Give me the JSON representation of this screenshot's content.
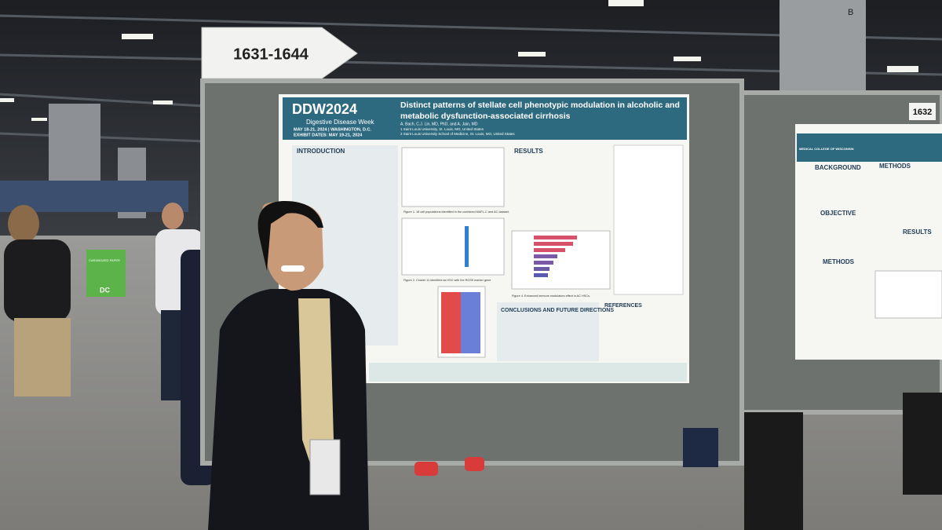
{
  "signs": {
    "aisle": "1631-1644",
    "booth": "1632",
    "pillar": "B",
    "dc": "DC",
    "cardboard": "CARDBOARD PAPER"
  },
  "poster_left": {
    "logo": "DDW2024",
    "logo_sub": "Digestive Disease Week",
    "dates": "MAY 18-21, 2024 | WASHINGTON, D.C.",
    "exhibit": "EXHIBIT DATES: MAY 19-21, 2024",
    "title_line1": "Distinct patterns of stellate cell phenotypic modulation in alcoholic and",
    "title_line2": "metabolic dysfunction-associated cirrhosis",
    "authors": "A. Bach, C.J. Lin, MD, PhD, and A. Jain, MD",
    "affil1": "1 Saint Louis University, St. Louis, MO, United States",
    "affil2": "2 Saint Louis University School of Medicine, St. Louis, MO, United States",
    "sections": [
      "INTRODUCTION",
      "RESULTS",
      "CONCLUSIONS AND FUTURE DIRECTIONS",
      "REFERENCES"
    ],
    "captions": [
      "Figure 1. 18 cell populations identified in the combined MAFL-C and AC dataset.",
      "Figure 2. Cluster 11 identified as HSC with the RGS5 marker gene",
      "Figure 4. Enhanced immune modulators effect in AC HSCs."
    ]
  },
  "poster_right": {
    "logo": "MEDICAL COLLEGE OF WISCONSIN",
    "sections": [
      "BACKGROUND",
      "METHODS",
      "OBJECTIVE",
      "METHODS",
      "RESULTS"
    ]
  }
}
